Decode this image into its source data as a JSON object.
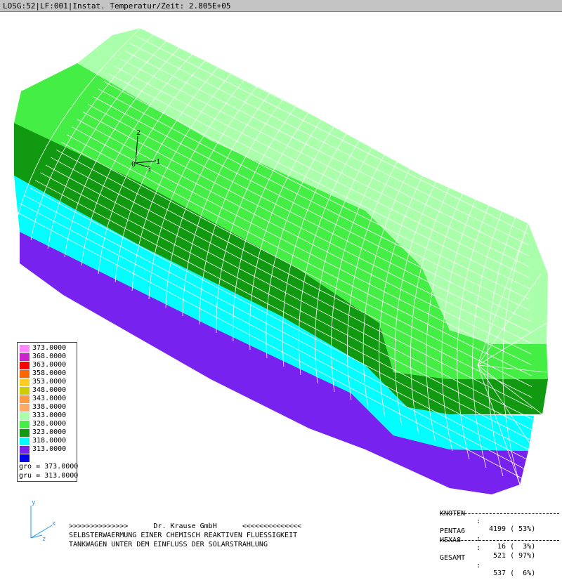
{
  "title": "LOSG:52|LF:001|Instat. Temperatur/Zeit: 2.805E+05",
  "colors": {
    "band_333": "#aaffaa",
    "band_328": "#44ee44",
    "band_323": "#119911",
    "band_318": "#00ffff",
    "band_313": "#7722ee",
    "mesh": "#ffffff"
  },
  "legend": {
    "items": [
      {
        "label": "373.0000",
        "color": "#ff88ff"
      },
      {
        "label": "368.0000",
        "color": "#cc22cc"
      },
      {
        "label": "363.0000",
        "color": "#ff0000"
      },
      {
        "label": "358.0000",
        "color": "#ff6600"
      },
      {
        "label": "353.0000",
        "color": "#ffcc22"
      },
      {
        "label": "348.0000",
        "color": "#cccc00"
      },
      {
        "label": "343.0000",
        "color": "#ff9944"
      },
      {
        "label": "338.0000",
        "color": "#ffaa66"
      },
      {
        "label": "333.0000",
        "color": "#aaffaa"
      },
      {
        "label": "328.0000",
        "color": "#44ee44"
      },
      {
        "label": "323.0000",
        "color": "#119911"
      },
      {
        "label": "318.0000",
        "color": "#00ffff"
      },
      {
        "label": "313.0000",
        "color": "#7722ee"
      },
      {
        "label": "",
        "color": "#0000ee"
      }
    ],
    "gro": "gro = 373.0000",
    "gru": "gru = 313.0000"
  },
  "axes_local": {
    "a1": "1",
    "a2": "2",
    "a3": "3",
    "origin": "0"
  },
  "axes_global": {
    "x": "x",
    "y": "y",
    "z": "z"
  },
  "footer": {
    "line1": ">>>>>>>>>>>>>>      Dr. Krause GmbH      <<<<<<<<<<<<<<",
    "line2": "SELBSTERWAERMUNG EINER CHEMISCH REAKTIVEN FLUESSIGKEIT",
    "line3": "TANKWAGEN UNTER DEM EINFLUSS DER SOLARSTRAHLUNG"
  },
  "stats": {
    "rows": [
      {
        "key": "KNOTEN",
        "value": "4199 ( 53%)"
      },
      {
        "key": "PENTA6",
        "value": "  16 (  3%)"
      },
      {
        "key": "HEXA8",
        "value": " 521 ( 97%)"
      },
      {
        "key": "GESAMT",
        "value": " 537 (  6%)"
      }
    ],
    "colon": ":"
  }
}
